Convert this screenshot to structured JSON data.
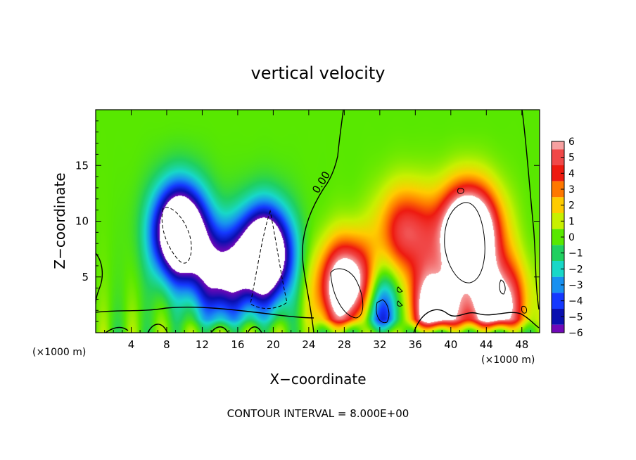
{
  "chart_data": {
    "type": "heatmap",
    "title": "vertical velocity",
    "xlabel": "X−coordinate",
    "ylabel": "Z−coordinate",
    "x_unit_left": "(×1000 m)",
    "x_unit_right": "(×1000 m)",
    "footer": "CONTOUR INTERVAL = 8.000E+00",
    "contour_label": "0.00",
    "xlim": [
      0,
      50
    ],
    "ylim": [
      0,
      20
    ],
    "xticks": [
      4,
      8,
      12,
      16,
      20,
      24,
      28,
      32,
      36,
      40,
      44,
      48
    ],
    "yticks": [
      5,
      10,
      15
    ],
    "colorbar": {
      "levels": [
        6,
        5,
        4,
        3,
        2,
        1,
        0,
        -1,
        -2,
        -3,
        -4,
        -5,
        -6
      ],
      "labels": [
        "6",
        "5",
        "4",
        "3",
        "2",
        "1",
        "0",
        "−1",
        "−2",
        "−3",
        "−4",
        "−5",
        "−6"
      ],
      "colors": [
        "#f6a0a0",
        "#f04848",
        "#ee1a10",
        "#ff7800",
        "#ffcc00",
        "#c8f000",
        "#58e800",
        "#20d060",
        "#18d8c8",
        "#1890f0",
        "#1438ff",
        "#0a10b0",
        "#7008b8"
      ],
      "saturation_color": "#ffffff"
    },
    "features": [
      {
        "name": "downdraft",
        "x": 9.5,
        "z": 9,
        "w": -11
      },
      {
        "name": "downdraft",
        "x": 19,
        "z": 7,
        "w": -11
      },
      {
        "name": "downdraft",
        "x": 32,
        "z": 2,
        "w": -6
      },
      {
        "name": "downdraft",
        "x": 14,
        "z": 5,
        "w": -6
      },
      {
        "name": "updraft",
        "x": 42,
        "z": 9,
        "w": 12
      },
      {
        "name": "updraft",
        "x": 28.5,
        "z": 4,
        "w": 10
      },
      {
        "name": "updraft",
        "x": 38,
        "z": 2,
        "w": 8
      },
      {
        "name": "updraft",
        "x": 45,
        "z": 2.5,
        "w": 8
      },
      {
        "name": "updraft",
        "x": 35,
        "z": 9,
        "w": 5
      }
    ]
  }
}
